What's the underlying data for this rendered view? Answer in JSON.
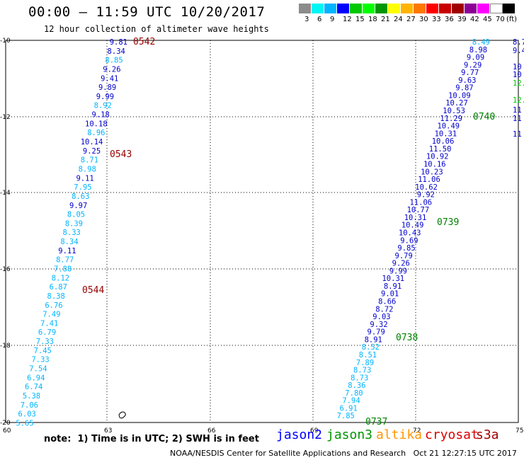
{
  "title": "00:00 – 11:59 UTC 10/20/2017",
  "subtitle": "12 hour collection of altimeter wave heights",
  "legend": {
    "colors": [
      "#8c8c8c",
      "#00f5f5",
      "#00b4ff",
      "#0000ff",
      "#00c800",
      "#00ff00",
      "#009600",
      "#ffff00",
      "#ffb400",
      "#ff7800",
      "#ff0000",
      "#c80000",
      "#a00000",
      "#8c0096",
      "#ff00ff",
      "#ffffff",
      "#000000"
    ],
    "ticks": [
      "3",
      "6",
      "9",
      "12",
      "15",
      "18",
      "21",
      "24",
      "27",
      "30",
      "33",
      "36",
      "39",
      "42",
      "45",
      "70",
      "(ft)"
    ]
  },
  "axes": {
    "y_labels": [
      "-10",
      "-12",
      "-14",
      "-16",
      "-18",
      "-20"
    ],
    "x_labels": [
      "60",
      "63",
      "66",
      "69",
      "72",
      "75"
    ]
  },
  "track1": {
    "values": [
      "9.81",
      "8.34",
      "8.85",
      "9.26",
      "9.41",
      "9.89",
      "9.99",
      "8.92",
      "9.18",
      "10.18",
      "8.96",
      "10.14",
      "9.25",
      "8.71",
      "8.98",
      "9.11",
      "7.95",
      "8.63",
      "9.97",
      "8.05",
      "8.39",
      "8.33",
      "8.34",
      "9.11",
      "8.77",
      "7.88",
      "8.12",
      "6.87",
      "8.38",
      "6.76",
      "7.49",
      "7.41",
      "6.79",
      "7.33",
      "7.45",
      "7.33",
      "7.54",
      "6.94",
      "6.74",
      "5.38",
      "7.06",
      "6.03",
      "5.65"
    ],
    "colors": [
      "#0000cc",
      "#0000cc",
      "#00b4ff",
      "#0000cc",
      "#0000cc",
      "#0000cc",
      "#0000cc",
      "#00b4ff",
      "#0000cc",
      "#0000cc",
      "#00b4ff",
      "#0000cc",
      "#0000cc",
      "#00b4ff",
      "#00b4ff",
      "#0000cc",
      "#00b4ff",
      "#00b4ff",
      "#0000cc",
      "#00b4ff",
      "#00b4ff",
      "#00b4ff",
      "#00b4ff",
      "#0000cc",
      "#00b4ff",
      "#00b4ff",
      "#00b4ff",
      "#00b4ff",
      "#00b4ff",
      "#00b4ff",
      "#00b4ff",
      "#00b4ff",
      "#00b4ff",
      "#00b4ff",
      "#00b4ff",
      "#00b4ff",
      "#00b4ff",
      "#00b4ff",
      "#00b4ff",
      "#00b4ff",
      "#00b4ff",
      "#00b4ff",
      "#00b4ff"
    ],
    "times": [
      "0542",
      "0543",
      "0544"
    ]
  },
  "track2": {
    "values": [
      "8.49",
      "8.98",
      "9.09",
      "9.29",
      "9.77",
      "9.63",
      "9.87",
      "10.09",
      "10.27",
      "10.53",
      "11.29",
      "10.49",
      "10.31",
      "10.06",
      "11.50",
      "10.92",
      "10.16",
      "10.23",
      "11.06",
      "10.62",
      "9.92",
      "11.06",
      "10.77",
      "10.31",
      "10.49",
      "10.43",
      "9.69",
      "9.85",
      "9.79",
      "9.26",
      "9.99",
      "10.31",
      "8.91",
      "9.01",
      "8.66",
      "8.72",
      "9.03",
      "9.32",
      "9.79",
      "8.91",
      "8.52",
      "8.51",
      "7.89",
      "8.73",
      "8.73",
      "8.36",
      "7.80",
      "7.94",
      "6.91",
      "7.85"
    ],
    "colors": [
      "#00b4ff",
      "#0000cc",
      "#0000cc",
      "#0000cc",
      "#0000cc",
      "#0000cc",
      "#0000cc",
      "#0000cc",
      "#0000cc",
      "#0000cc",
      "#0000cc",
      "#0000cc",
      "#0000cc",
      "#0000cc",
      "#0000cc",
      "#0000cc",
      "#0000cc",
      "#0000cc",
      "#0000cc",
      "#0000cc",
      "#0000cc",
      "#0000cc",
      "#0000cc",
      "#0000cc",
      "#0000cc",
      "#0000cc",
      "#0000cc",
      "#0000cc",
      "#0000cc",
      "#0000cc",
      "#0000cc",
      "#0000cc",
      "#0000cc",
      "#0000cc",
      "#0000cc",
      "#0000cc",
      "#0000cc",
      "#0000cc",
      "#0000cc",
      "#0000cc",
      "#00b4ff",
      "#00b4ff",
      "#00b4ff",
      "#00b4ff",
      "#00b4ff",
      "#00b4ff",
      "#00b4ff",
      "#00b4ff",
      "#00b4ff",
      "#00b4ff"
    ],
    "times": [
      "0740",
      "0739",
      "0738",
      "0737"
    ]
  },
  "edge_values": [
    "8.7",
    "9.4",
    "10",
    "10",
    "12.",
    "12.",
    "11",
    "11",
    "11"
  ],
  "note": "note:  1) Time is in UTC; 2) SWH is in feet",
  "satellites": [
    {
      "name": "jason2",
      "color": "#0000ff"
    },
    {
      "name": "jason3",
      "color": "#009600"
    },
    {
      "name": "altika",
      "color": "#ff9600"
    },
    {
      "name": "cryosat",
      "color": "#dc0000"
    },
    {
      "name": "s3a",
      "color": "#a00000"
    }
  ],
  "credit": "NOAA/NESDIS Center for Satellite Applications and Research   Oct 21 12:27:15 UTC 2017"
}
